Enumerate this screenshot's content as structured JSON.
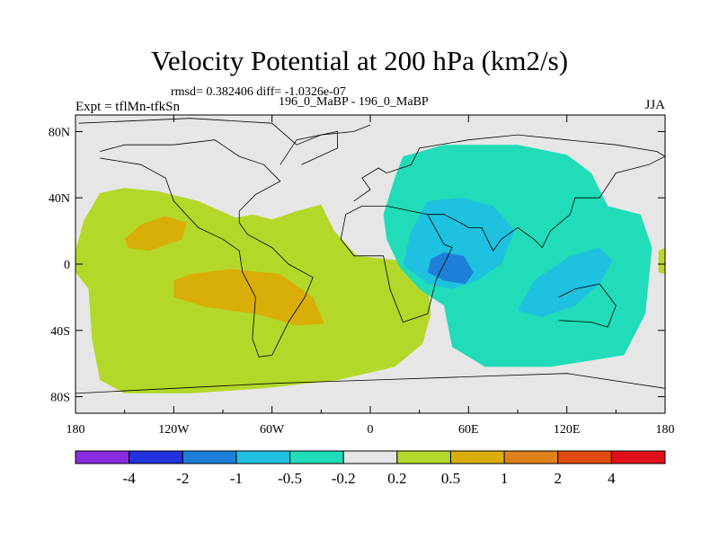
{
  "header": {
    "title": "Velocity Potential at 200 hPa (km2/s)",
    "rmsd": "rmsd= 0.382406 diff= -1.0326e-07",
    "left": "Expt = tflMn-tfkSn",
    "center": "196_0_MaBP - 196_0_MaBP",
    "right": "JJA"
  },
  "colors": {
    "background_land": "#e6e6e6",
    "outline": "#000000"
  },
  "chart_data": {
    "type": "contour_map",
    "title": "Velocity Potential at 200 hPa (km2/s)",
    "projection": "cylindrical equidistant",
    "xlim": [
      -180,
      180
    ],
    "ylim": [
      -90,
      90
    ],
    "x_ticks": [
      {
        "lon": -180,
        "label": "180"
      },
      {
        "lon": -120,
        "label": "120W"
      },
      {
        "lon": -60,
        "label": "60W"
      },
      {
        "lon": 0,
        "label": "0"
      },
      {
        "lon": 60,
        "label": "60E"
      },
      {
        "lon": 120,
        "label": "120E"
      },
      {
        "lon": 180,
        "label": "180"
      }
    ],
    "y_ticks": [
      {
        "lat": 80,
        "label": "80N"
      },
      {
        "lat": 40,
        "label": "40N"
      },
      {
        "lat": 0,
        "label": "0"
      },
      {
        "lat": -40,
        "label": "40S"
      },
      {
        "lat": -80,
        "label": "80S"
      }
    ],
    "colorbar": {
      "colors": [
        "#8a2be2",
        "#2233dd",
        "#1e7fd9",
        "#1ec1e0",
        "#20dcb8",
        "#e6e6e6",
        "#b4d82a",
        "#d9ae08",
        "#e0811a",
        "#e24a10",
        "#e0101a"
      ],
      "labels": [
        "-4",
        "-2",
        "-1",
        "-0.5",
        "-0.2",
        "0.2",
        "0.5",
        "1",
        "2",
        "4"
      ]
    },
    "regions": [
      {
        "name": "pacific-positive",
        "level": "0.2 to 0.5",
        "color": "#b4d82a",
        "poly": [
          [
            -180,
            8
          ],
          [
            -175,
            26
          ],
          [
            -165,
            43
          ],
          [
            -150,
            46
          ],
          [
            -130,
            44
          ],
          [
            -105,
            38
          ],
          [
            -82,
            28
          ],
          [
            -72,
            30
          ],
          [
            -60,
            27
          ],
          [
            -45,
            32
          ],
          [
            -30,
            36
          ],
          [
            -22,
            20
          ],
          [
            -8,
            5
          ],
          [
            20,
            2
          ],
          [
            35,
            -10
          ],
          [
            37,
            -30
          ],
          [
            32,
            -48
          ],
          [
            15,
            -62
          ],
          [
            -20,
            -70
          ],
          [
            -65,
            -75
          ],
          [
            -110,
            -78
          ],
          [
            -150,
            -78
          ],
          [
            -165,
            -70
          ],
          [
            -170,
            -45
          ],
          [
            -172,
            -15
          ],
          [
            -180,
            -5
          ]
        ]
      },
      {
        "name": "pacific-max-north",
        "level": "0.5 to 1",
        "color": "#d9ae08",
        "poly": [
          [
            -150,
            15
          ],
          [
            -140,
            24
          ],
          [
            -125,
            29
          ],
          [
            -112,
            25
          ],
          [
            -115,
            15
          ],
          [
            -135,
            8
          ],
          [
            -148,
            10
          ]
        ]
      },
      {
        "name": "pacific-max-south",
        "level": "0.5 to 1",
        "color": "#d9ae08",
        "poly": [
          [
            -120,
            -10
          ],
          [
            -110,
            -6
          ],
          [
            -85,
            -3
          ],
          [
            -55,
            -6
          ],
          [
            -35,
            -20
          ],
          [
            -28,
            -36
          ],
          [
            -45,
            -37
          ],
          [
            -70,
            -30
          ],
          [
            -100,
            -26
          ],
          [
            -120,
            -20
          ]
        ]
      },
      {
        "name": "eastern-hemisphere-negative",
        "level": "-0.5 to -0.2",
        "color": "#20dcb8",
        "poly": [
          [
            8,
            30
          ],
          [
            15,
            52
          ],
          [
            20,
            65
          ],
          [
            45,
            72
          ],
          [
            90,
            72
          ],
          [
            120,
            66
          ],
          [
            135,
            55
          ],
          [
            145,
            35
          ],
          [
            165,
            30
          ],
          [
            172,
            10
          ],
          [
            168,
            -30
          ],
          [
            155,
            -55
          ],
          [
            110,
            -62
          ],
          [
            70,
            -62
          ],
          [
            50,
            -50
          ],
          [
            45,
            -25
          ],
          [
            30,
            -15
          ],
          [
            18,
            -2
          ],
          [
            10,
            15
          ]
        ]
      },
      {
        "name": "asia-africa-minimum",
        "level": "-1 to -0.5",
        "color": "#1ec1e0",
        "poly": [
          [
            20,
            0
          ],
          [
            25,
            20
          ],
          [
            35,
            38
          ],
          [
            55,
            40
          ],
          [
            75,
            35
          ],
          [
            88,
            20
          ],
          [
            80,
            0
          ],
          [
            65,
            -10
          ],
          [
            50,
            -15
          ],
          [
            35,
            -12
          ]
        ]
      },
      {
        "name": "indian-ocean-minimum",
        "level": "-1 to -0.5",
        "color": "#1ec1e0",
        "poly": [
          [
            90,
            -28
          ],
          [
            100,
            -10
          ],
          [
            122,
            5
          ],
          [
            140,
            10
          ],
          [
            148,
            2
          ],
          [
            140,
            -12
          ],
          [
            125,
            -25
          ],
          [
            105,
            -32
          ]
        ]
      },
      {
        "name": "arabia-core",
        "level": "-2 to -1",
        "color": "#1e7fd9",
        "poly": [
          [
            35,
            -5
          ],
          [
            37,
            3
          ],
          [
            45,
            7
          ],
          [
            57,
            5
          ],
          [
            63,
            -5
          ],
          [
            58,
            -12
          ],
          [
            45,
            -10
          ]
        ]
      },
      {
        "name": "dateline-positive-east",
        "level": "0.2 to 0.5",
        "color": "#b4d82a",
        "poly": [
          [
            176,
            -5
          ],
          [
            180,
            -6
          ],
          [
            180,
            10
          ],
          [
            176,
            8
          ]
        ]
      }
    ],
    "coastlines": [
      [
        [
          -178,
          85
        ],
        [
          -110,
          88
        ],
        [
          -60,
          85
        ],
        [
          -45,
          72
        ],
        [
          -30,
          78
        ],
        [
          -10,
          80
        ],
        [
          0,
          84
        ]
      ],
      [
        [
          -165,
          64
        ],
        [
          -140,
          60
        ],
        [
          -125,
          52
        ],
        [
          -120,
          38
        ],
        [
          -105,
          22
        ],
        [
          -90,
          15
        ],
        [
          -80,
          8
        ],
        [
          -78,
          -5
        ],
        [
          -70,
          -20
        ],
        [
          -72,
          -45
        ],
        [
          -68,
          -56
        ],
        [
          -60,
          -55
        ],
        [
          -50,
          -35
        ],
        [
          -40,
          -20
        ],
        [
          -35,
          -8
        ],
        [
          -50,
          0
        ],
        [
          -60,
          10
        ],
        [
          -75,
          18
        ],
        [
          -80,
          25
        ],
        [
          -80,
          32
        ],
        [
          -70,
          42
        ],
        [
          -55,
          50
        ],
        [
          -65,
          60
        ],
        [
          -80,
          65
        ],
        [
          -95,
          75
        ],
        [
          -120,
          72
        ],
        [
          -150,
          72
        ],
        [
          -165,
          68
        ]
      ],
      [
        [
          -55,
          60
        ],
        [
          -45,
          75
        ],
        [
          -20,
          80
        ],
        [
          -20,
          70
        ],
        [
          -42,
          60
        ]
      ],
      [
        [
          -10,
          38
        ],
        [
          0,
          45
        ],
        [
          -5,
          52
        ],
        [
          5,
          58
        ],
        [
          10,
          55
        ],
        [
          25,
          60
        ],
        [
          30,
          70
        ],
        [
          60,
          75
        ],
        [
          90,
          78
        ],
        [
          120,
          75
        ],
        [
          150,
          72
        ],
        [
          175,
          68
        ],
        [
          180,
          65
        ]
      ],
      [
        [
          -5,
          35
        ],
        [
          10,
          35
        ],
        [
          25,
          32
        ],
        [
          35,
          30
        ],
        [
          45,
          12
        ],
        [
          50,
          10
        ],
        [
          40,
          -10
        ],
        [
          35,
          -30
        ],
        [
          20,
          -35
        ],
        [
          12,
          -15
        ],
        [
          8,
          5
        ],
        [
          -10,
          5
        ],
        [
          -18,
          15
        ],
        [
          -15,
          30
        ],
        [
          -5,
          35
        ]
      ],
      [
        [
          35,
          30
        ],
        [
          45,
          30
        ],
        [
          55,
          25
        ],
        [
          60,
          22
        ],
        [
          68,
          22
        ],
        [
          75,
          8
        ],
        [
          80,
          15
        ],
        [
          90,
          22
        ],
        [
          100,
          15
        ],
        [
          105,
          10
        ],
        [
          110,
          20
        ],
        [
          122,
          30
        ],
        [
          125,
          40
        ],
        [
          140,
          40
        ],
        [
          150,
          55
        ],
        [
          170,
          60
        ],
        [
          180,
          65
        ]
      ],
      [
        [
          115,
          -20
        ],
        [
          125,
          -15
        ],
        [
          140,
          -12
        ],
        [
          150,
          -25
        ],
        [
          145,
          -38
        ],
        [
          135,
          -35
        ],
        [
          115,
          -34
        ]
      ],
      [
        [
          -180,
          -78
        ],
        [
          -120,
          -75
        ],
        [
          -60,
          -72
        ],
        [
          0,
          -70
        ],
        [
          60,
          -68
        ],
        [
          120,
          -66
        ],
        [
          180,
          -75
        ]
      ]
    ]
  }
}
